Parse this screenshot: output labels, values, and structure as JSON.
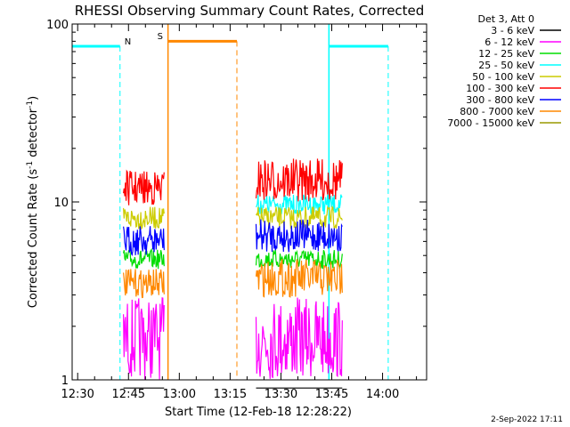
{
  "chart_data": {
    "type": "line",
    "title": "RHESSI Observing Summary Count Rates, Corrected",
    "xlabel": "Start Time (12-Feb-18 12:28:22)",
    "ylabel_main": "Corrected Count Rate (s",
    "ylabel_sup1": "-1",
    "ylabel_mid": " detector",
    "ylabel_sup2": "-1",
    "ylabel_end": ")",
    "yscale": "log",
    "ylim": [
      1,
      100
    ],
    "yticks": [
      {
        "value": 1,
        "label": "1"
      },
      {
        "value": 10,
        "label": "10"
      },
      {
        "value": 100,
        "label": "100"
      }
    ],
    "xlim": [
      "12:28:22",
      "14:13:00"
    ],
    "xticks": [
      "12:30",
      "12:45",
      "13:00",
      "13:15",
      "13:30",
      "13:45",
      "14:00"
    ],
    "grid": false,
    "legend_position": "top-right",
    "legend_title": "Det 3, Att 0",
    "series": [
      {
        "name": "3 - 6 keV",
        "color": "#000000",
        "segments": [
          {
            "start": "12:43:30",
            "end": "12:55:30",
            "low": 0.9,
            "high": 0.9
          },
          {
            "start": "13:22:40",
            "end": "13:48:00",
            "low": 0.9,
            "high": 0.9
          }
        ]
      },
      {
        "name": "6 - 12 keV",
        "color": "#ff00ff",
        "segments": [
          {
            "start": "12:43:30",
            "end": "12:55:30",
            "low": 1.0,
            "high": 2.9
          },
          {
            "start": "13:22:40",
            "end": "13:48:00",
            "low": 1.0,
            "high": 2.9
          }
        ]
      },
      {
        "name": "12 - 25 keV",
        "color": "#00dd00",
        "segments": [
          {
            "start": "12:43:30",
            "end": "12:55:30",
            "low": 4.2,
            "high": 5.4
          },
          {
            "start": "13:22:40",
            "end": "13:48:00",
            "low": 4.2,
            "high": 5.4
          }
        ]
      },
      {
        "name": "25 - 50 keV",
        "color": "#00ffff",
        "segments": [
          {
            "start": "13:22:40",
            "end": "13:48:00",
            "low": 8.5,
            "high": 11.0
          }
        ]
      },
      {
        "name": "50 - 100 keV",
        "color": "#cccc00",
        "segments": [
          {
            "start": "12:43:30",
            "end": "12:55:30",
            "low": 7.0,
            "high": 9.4
          },
          {
            "start": "13:22:40",
            "end": "13:48:00",
            "low": 7.0,
            "high": 9.4
          }
        ]
      },
      {
        "name": "100 - 300 keV",
        "color": "#ff0000",
        "segments": [
          {
            "start": "12:43:30",
            "end": "12:55:30",
            "low": 9.5,
            "high": 15.0
          },
          {
            "start": "13:22:40",
            "end": "13:48:00",
            "low": 10.0,
            "high": 17.5
          }
        ]
      },
      {
        "name": "300 - 800 keV",
        "color": "#0000ff",
        "segments": [
          {
            "start": "12:43:30",
            "end": "12:55:30",
            "low": 5.0,
            "high": 7.4
          },
          {
            "start": "13:22:40",
            "end": "13:48:00",
            "low": 5.2,
            "high": 8.0
          }
        ]
      },
      {
        "name": "800 - 7000 keV",
        "color": "#ff8800",
        "segments": [
          {
            "start": "12:43:30",
            "end": "12:55:30",
            "low": 2.9,
            "high": 4.2
          },
          {
            "start": "13:22:40",
            "end": "13:48:00",
            "low": 2.9,
            "high": 4.8
          }
        ]
      },
      {
        "name": "7000 - 15000 keV",
        "color": "#999900",
        "segments": []
      }
    ],
    "flags": [
      {
        "label": "N",
        "color": "#00ffff",
        "level": 75,
        "segments": [
          {
            "start": "12:28:22",
            "end": "12:42:30",
            "dashed_end": true
          },
          {
            "start": "13:44:10",
            "end": "14:01:40",
            "dashed_end": true
          }
        ]
      },
      {
        "label": "S",
        "color": "#ff8800",
        "level": 80,
        "segments": [
          {
            "start": "12:56:40",
            "end": "13:17:00",
            "dashed_end": true
          }
        ]
      }
    ]
  },
  "footer": {
    "timestamp": "2-Sep-2022 17:11"
  }
}
